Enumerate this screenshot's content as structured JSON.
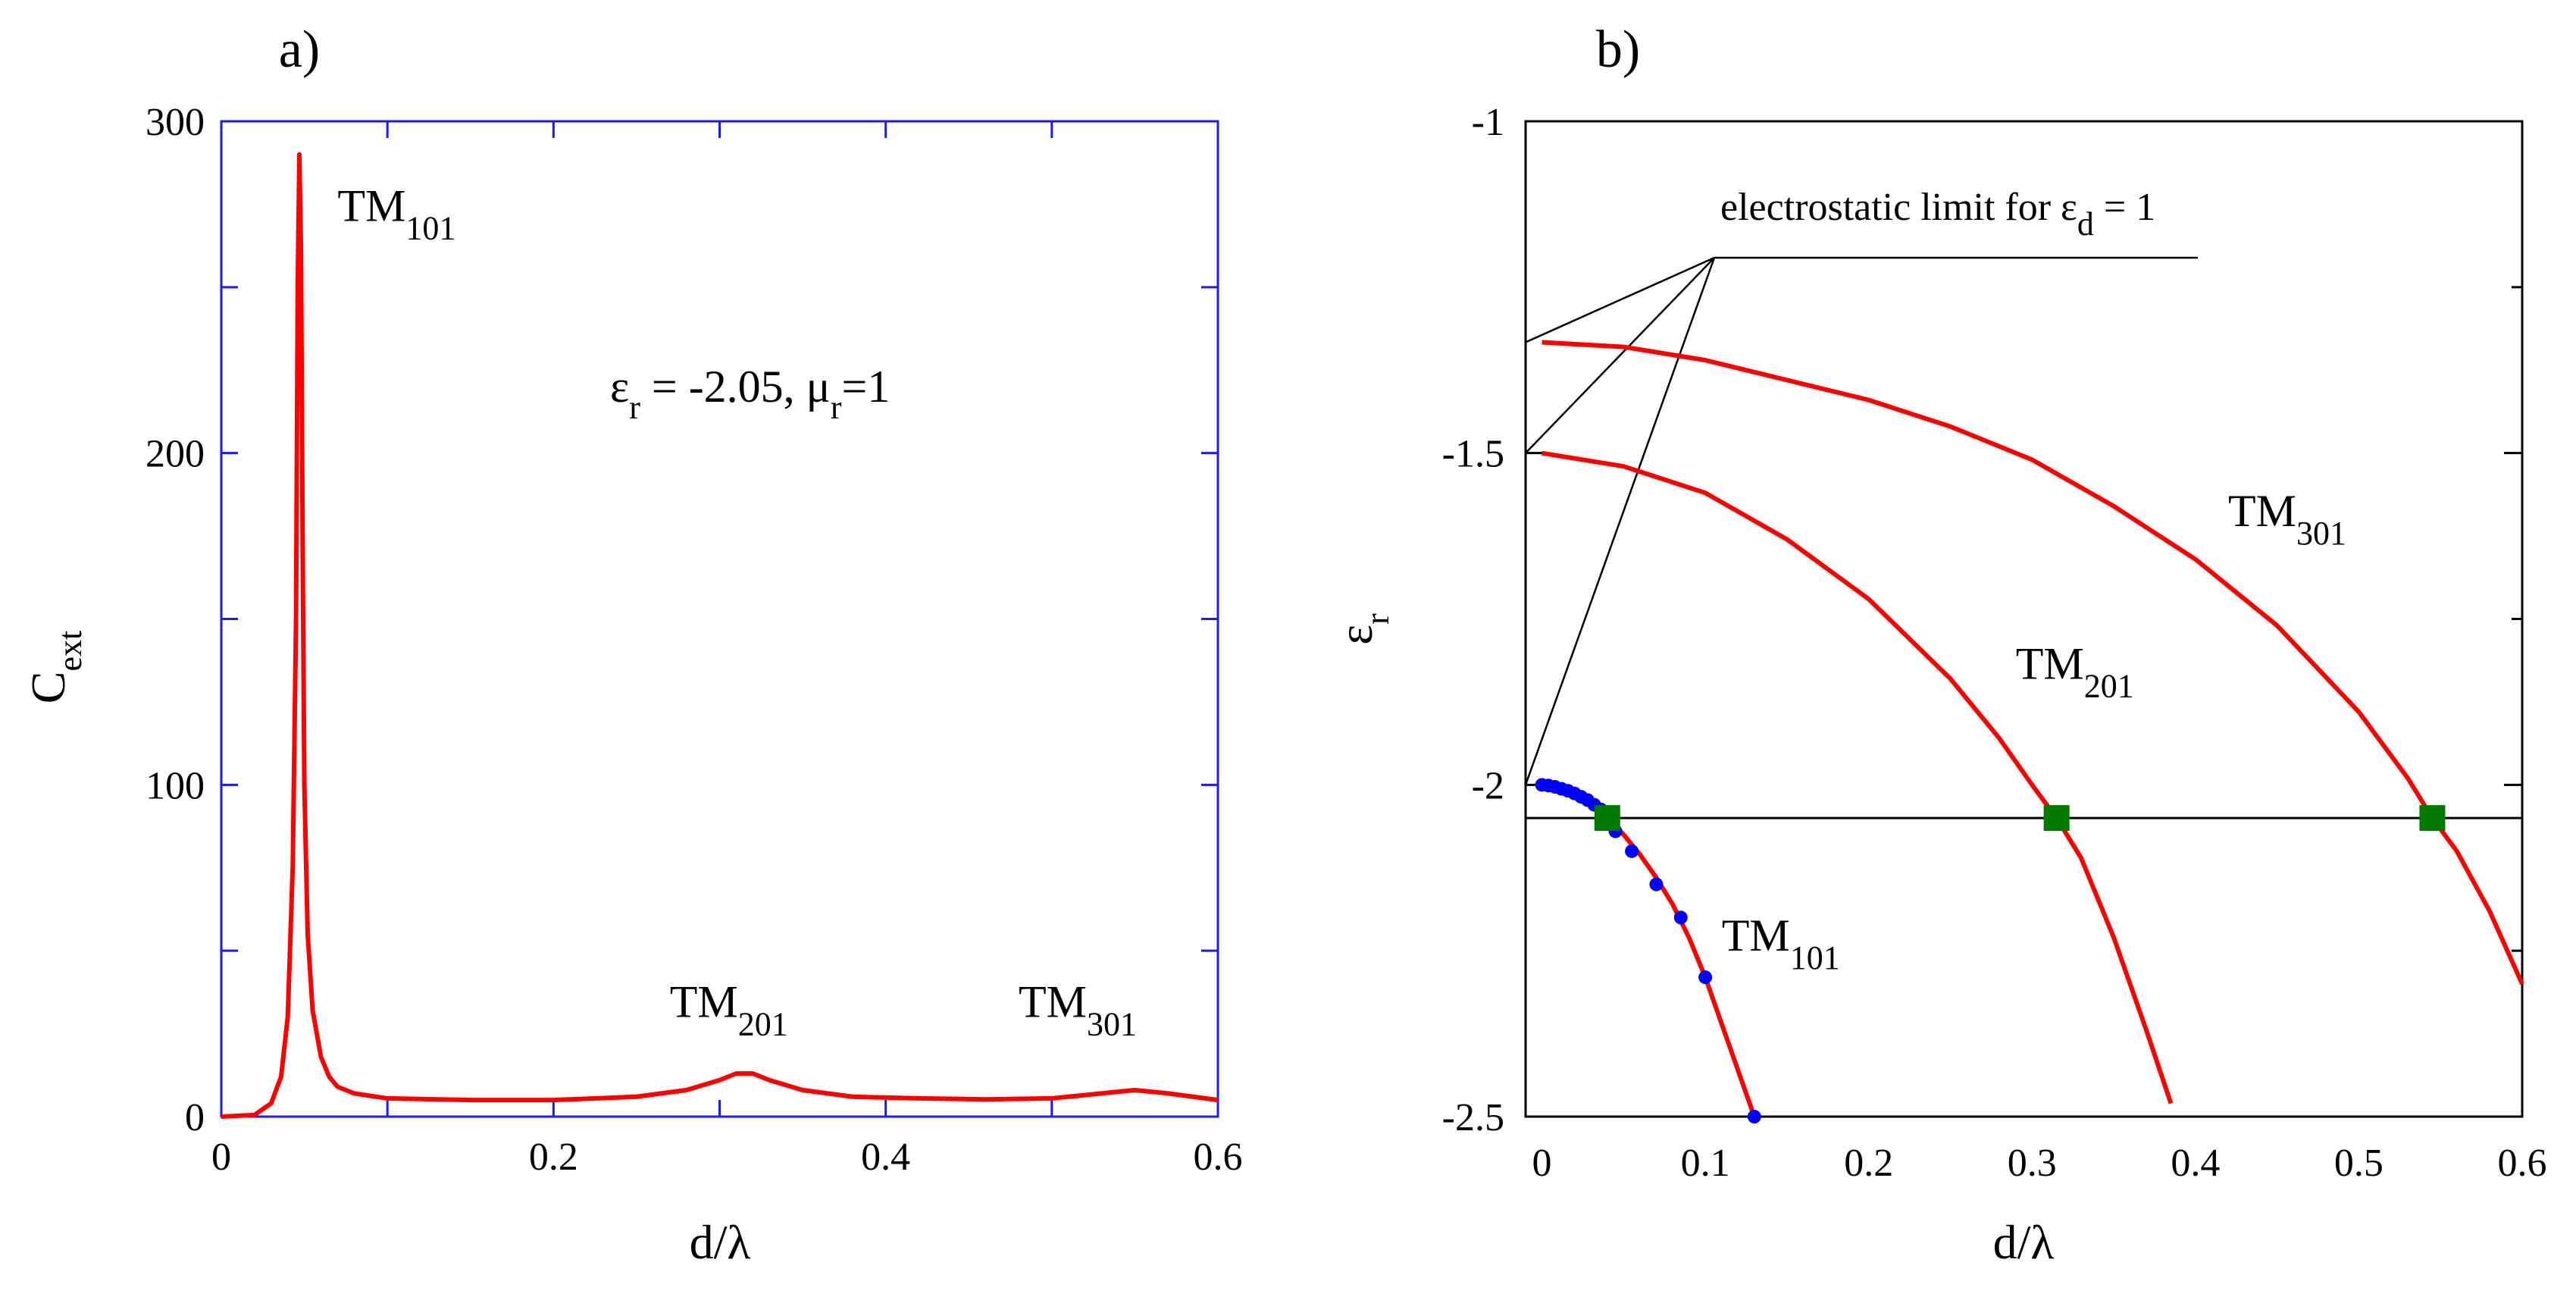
{
  "chart_data": [
    {
      "panel": "a)",
      "type": "line",
      "xlabel": "d/λ",
      "ylabel_main": "C",
      "ylabel_sub": "ext",
      "xlim": [
        0,
        0.6
      ],
      "ylim": [
        0,
        300
      ],
      "xticks": [
        {
          "v": 0,
          "t": "0"
        },
        {
          "v": 0.2,
          "t": "0.2"
        },
        {
          "v": 0.4,
          "t": "0.4"
        },
        {
          "v": 0.6,
          "t": "0.6"
        }
      ],
      "yticks": [
        {
          "v": 0,
          "t": "0"
        },
        {
          "v": 100,
          "t": "100"
        },
        {
          "v": 200,
          "t": "200"
        },
        {
          "v": 300,
          "t": "300"
        }
      ],
      "minor_step_x": 0.1,
      "minor_step_y": 50,
      "annotation": {
        "eps": "ε",
        "eps_sub": "r",
        "eps_text": " = -2.05, μ",
        "mu_sub": "r",
        "mu_text": "=1"
      },
      "mode_labels": [
        {
          "main": "TM",
          "sub": "101",
          "x": 0.07,
          "y": 270
        },
        {
          "main": "TM",
          "sub": "201",
          "x": 0.27,
          "y": 30
        },
        {
          "main": "TM",
          "sub": "301",
          "x": 0.48,
          "y": 30
        }
      ],
      "series": [
        {
          "name": "C_ext",
          "color": "#ff0000",
          "x": [
            0,
            0.02,
            0.03,
            0.036,
            0.04,
            0.043,
            0.045,
            0.046,
            0.047,
            0.048,
            0.049,
            0.05,
            0.052,
            0.055,
            0.06,
            0.065,
            0.07,
            0.08,
            0.1,
            0.15,
            0.2,
            0.25,
            0.28,
            0.3,
            0.31,
            0.32,
            0.33,
            0.35,
            0.38,
            0.42,
            0.46,
            0.5,
            0.53,
            0.55,
            0.57,
            0.6
          ],
          "y": [
            0,
            0.5,
            4,
            12,
            30,
            75,
            150,
            250,
            290,
            260,
            170,
            100,
            55,
            32,
            18,
            12,
            9,
            7,
            5.5,
            5,
            5,
            6,
            8,
            11,
            13,
            13,
            11,
            8,
            6,
            5.5,
            5.2,
            5.5,
            7,
            8,
            7,
            5
          ]
        }
      ]
    },
    {
      "panel": "b)",
      "type": "line",
      "xlabel": "d/λ",
      "ylabel_main": "ε",
      "ylabel_sub": "r",
      "xlim": [
        -0.01,
        0.6
      ],
      "ylim": [
        -2.5,
        -1
      ],
      "xticks": [
        {
          "v": 0,
          "t": "0"
        },
        {
          "v": 0.1,
          "t": "0.1"
        },
        {
          "v": 0.2,
          "t": "0.2"
        },
        {
          "v": 0.3,
          "t": "0.3"
        },
        {
          "v": 0.4,
          "t": "0.4"
        },
        {
          "v": 0.5,
          "t": "0.5"
        },
        {
          "v": 0.6,
          "t": "0.6"
        }
      ],
      "yticks": [
        {
          "v": -1,
          "t": "-1"
        },
        {
          "v": -1.5,
          "t": "-1.5"
        },
        {
          "v": -2,
          "t": "-2"
        },
        {
          "v": -2.5,
          "t": "-2.5"
        }
      ],
      "minor_step_y": 0.25,
      "hline": -2.05,
      "limit_label": {
        "main": "electrostatic limit for ε",
        "sub": "d",
        "tail": " = 1"
      },
      "limit_values": [
        -1.333,
        -1.5,
        -2.0
      ],
      "mode_labels": [
        {
          "main": "TM",
          "sub": "101",
          "x": 0.11,
          "y": -2.25
        },
        {
          "main": "TM",
          "sub": "201",
          "x": 0.29,
          "y": -1.84
        },
        {
          "main": "TM",
          "sub": "301",
          "x": 0.42,
          "y": -1.61
        }
      ],
      "series": [
        {
          "name": "TM101",
          "color": "#ff0000",
          "x": [
            0,
            0.01,
            0.02,
            0.03,
            0.04,
            0.05,
            0.06,
            0.07,
            0.08,
            0.09,
            0.1,
            0.11,
            0.12,
            0.13
          ],
          "y": [
            -2.0,
            -2.005,
            -2.015,
            -2.03,
            -2.05,
            -2.075,
            -2.105,
            -2.14,
            -2.18,
            -2.23,
            -2.29,
            -2.36,
            -2.43,
            -2.5
          ]
        },
        {
          "name": "TM201",
          "color": "#ff0000",
          "x": [
            0,
            0.05,
            0.1,
            0.15,
            0.2,
            0.25,
            0.28,
            0.3,
            0.315,
            0.33,
            0.35,
            0.37,
            0.385
          ],
          "y": [
            -1.5,
            -1.52,
            -1.56,
            -1.63,
            -1.72,
            -1.84,
            -1.93,
            -2.0,
            -2.05,
            -2.11,
            -2.23,
            -2.37,
            -2.48
          ]
        },
        {
          "name": "TM301",
          "color": "#ff0000",
          "x": [
            0,
            0.05,
            0.1,
            0.15,
            0.2,
            0.25,
            0.3,
            0.35,
            0.4,
            0.45,
            0.5,
            0.53,
            0.545,
            0.56,
            0.58,
            0.6
          ],
          "y": [
            -1.333,
            -1.34,
            -1.36,
            -1.39,
            -1.42,
            -1.46,
            -1.51,
            -1.58,
            -1.66,
            -1.76,
            -1.89,
            -1.99,
            -2.05,
            -2.1,
            -2.19,
            -2.3
          ]
        }
      ],
      "blue_points": {
        "color": "#0000ff",
        "x": [
          0,
          0.004,
          0.008,
          0.012,
          0.016,
          0.02,
          0.024,
          0.028,
          0.032,
          0.036,
          0.045,
          0.055,
          0.07,
          0.085,
          0.1,
          0.13
        ],
        "y": [
          -2.0,
          -2.001,
          -2.003,
          -2.006,
          -2.009,
          -2.013,
          -2.018,
          -2.023,
          -2.03,
          -2.037,
          -2.07,
          -2.1,
          -2.15,
          -2.2,
          -2.29,
          -2.5
        ]
      },
      "intersections": {
        "color": "#007a00",
        "x": [
          0.04,
          0.315,
          0.545
        ],
        "y": [
          -2.05,
          -2.05,
          -2.05
        ]
      }
    }
  ]
}
